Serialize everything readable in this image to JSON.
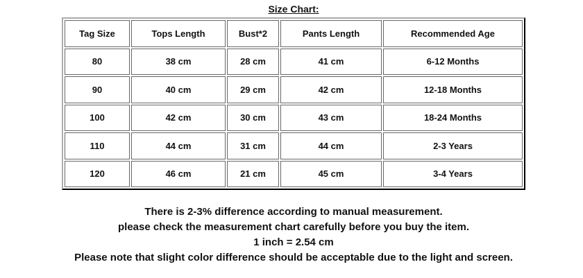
{
  "title": "Size Chart:",
  "table": {
    "headers": [
      "Tag Size",
      "Tops Length",
      "Bust*2",
      "Pants Length",
      "Recommended Age"
    ],
    "rows": [
      [
        "80",
        "38 cm",
        "28 cm",
        "41 cm",
        "6-12 Months"
      ],
      [
        "90",
        "40 cm",
        "29 cm",
        "42 cm",
        "12-18 Months"
      ],
      [
        "100",
        "42 cm",
        "30 cm",
        "43 cm",
        "18-24 Months"
      ],
      [
        "110",
        "44 cm",
        "31 cm",
        "44 cm",
        "2-3 Years"
      ],
      [
        "120",
        "46 cm",
        "21 cm",
        "45 cm",
        "3-4 Years"
      ]
    ]
  },
  "notes": [
    "There is 2-3% difference according to manual measurement.",
    "please check the measurement chart carefully before you buy the item.",
    "1 inch = 2.54 cm",
    "Please note that slight color difference should be acceptable due to the light and screen."
  ]
}
